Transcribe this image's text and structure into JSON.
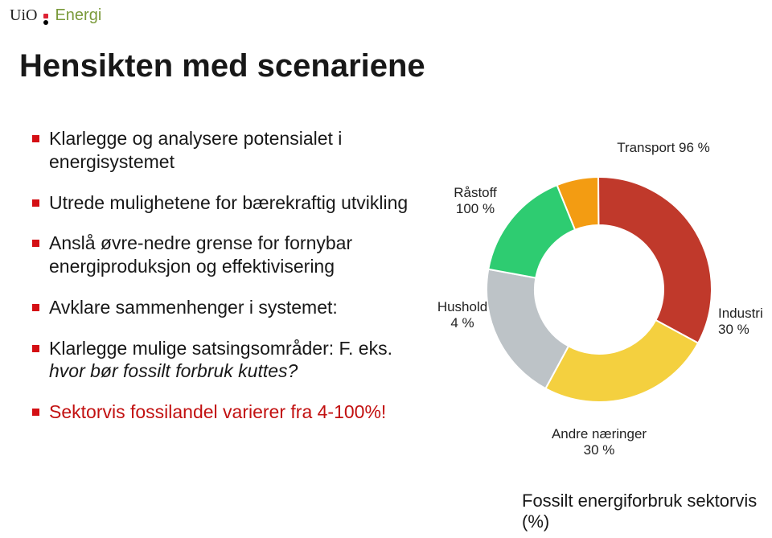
{
  "header": {
    "uio": "UiO",
    "energi": "Energi"
  },
  "title": "Hensikten med scenariene",
  "bullets": [
    {
      "text": "Klarlegge og analysere potensialet i energisystemet",
      "red": false,
      "italic": false
    },
    {
      "text": "Utrede mulighetene for bærekraftig utvikling",
      "red": false,
      "italic": false
    },
    {
      "text": "Anslå øvre-nedre grense for fornybar energiproduksjon og effektivisering",
      "red": false,
      "italic": false
    },
    {
      "text": "Avklare sammenhenger i systemet:",
      "red": false,
      "italic": false
    },
    {
      "text_pre": "Klarlegge mulige satsingsområder: F. eks. ",
      "text_it": "hvor bør fossilt forbruk kuttes?",
      "red": false,
      "italic_part": true
    },
    {
      "text": "Sektorvis fossilandel varierer fra 4-100%!",
      "red": true,
      "italic": false
    }
  ],
  "chart": {
    "type": "donut",
    "inner_radius": 80,
    "outer_radius": 140,
    "background_color": "#ffffff",
    "slices": [
      {
        "key": "rastoff",
        "label_top": "Råstoff",
        "label_bot": "100 %",
        "value": 100,
        "color": "#f39c12",
        "angle_share": 0.06
      },
      {
        "key": "transport",
        "label_top": "Transport",
        "label_bot": "96 %",
        "value": 96,
        "color": "#c0392b",
        "angle_share": 0.33
      },
      {
        "key": "industri",
        "label_top": "Industri",
        "label_bot": "30 %",
        "value": 30,
        "color": "#f4d03f",
        "angle_share": 0.25
      },
      {
        "key": "andre",
        "label_top": "Andre næringer",
        "label_bot": "30 %",
        "value": 30,
        "color": "#bdc3c7",
        "angle_share": 0.2
      },
      {
        "key": "hushold",
        "label_top": "Hushold",
        "label_bot": "4 %",
        "value": 4,
        "color": "#2ecc71",
        "angle_share": 0.16
      }
    ],
    "caption": "Fossilt energiforbruk sektorvis (%)",
    "label_fontsize": 17,
    "caption_fontsize": 22
  }
}
